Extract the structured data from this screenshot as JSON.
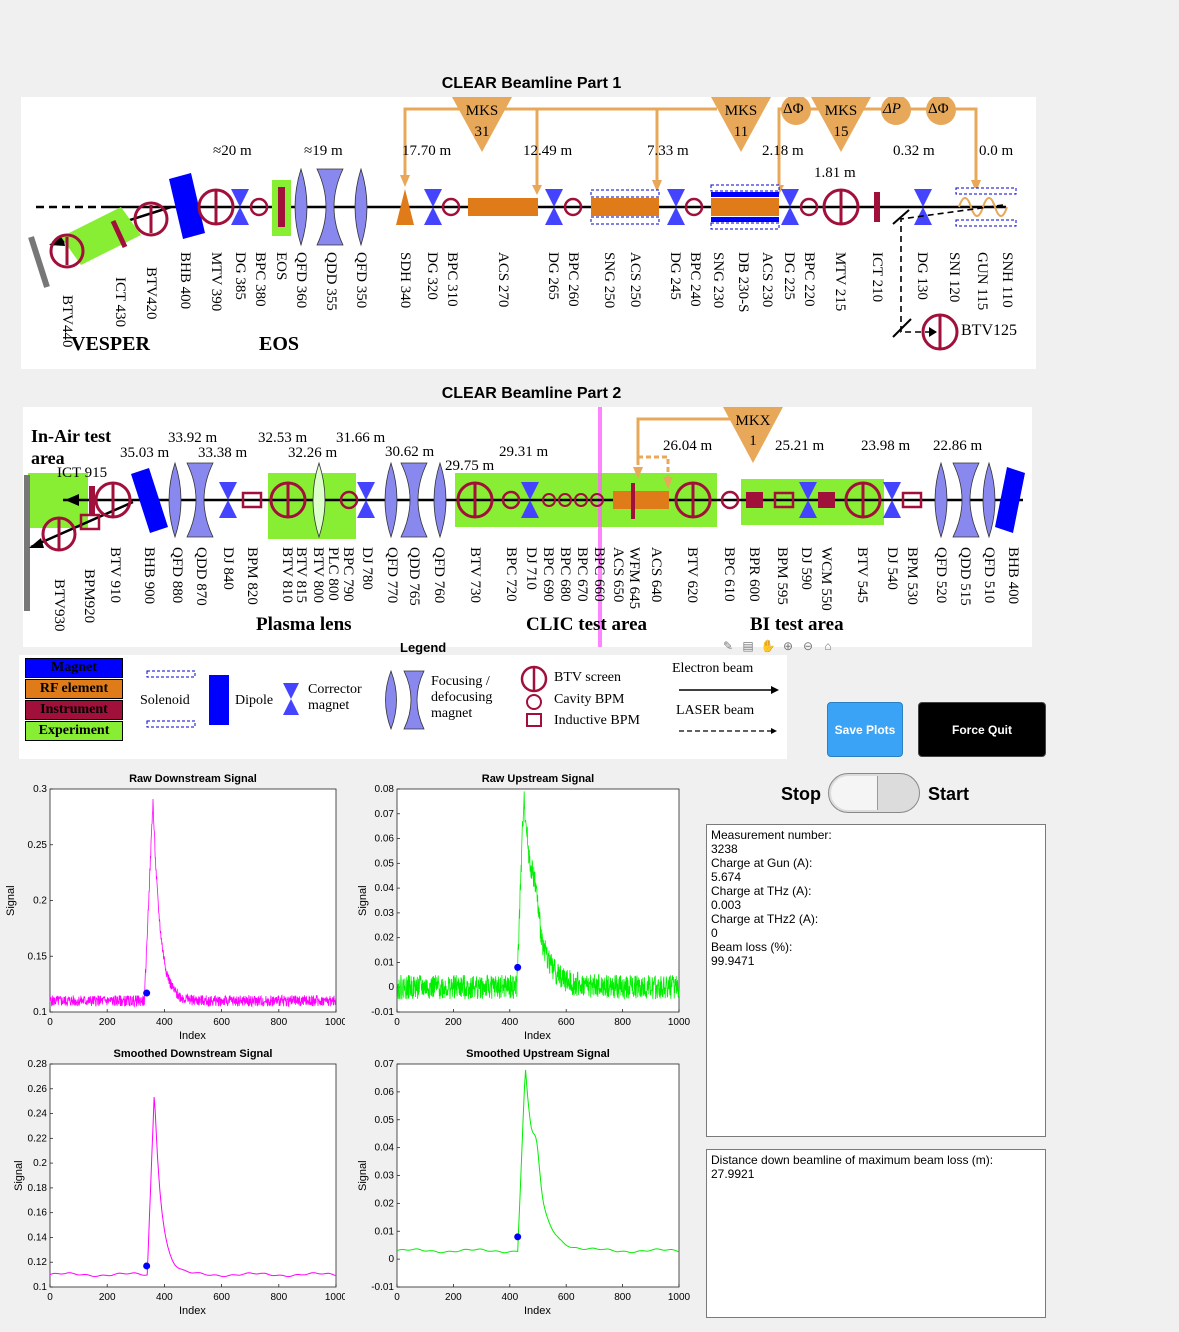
{
  "beamline1": {
    "title": "CLEAR Beamline Part 1",
    "distances": [
      "≈20 m",
      "≈19 m",
      "17.70 m",
      "12.49 m",
      "7.33 m",
      "2.18 m",
      "1.81 m",
      "0.32 m",
      "0.0 m"
    ],
    "rf_sources": [
      "MKS 31",
      "MKS 11",
      "MKS 15"
    ],
    "phase_labels": [
      "ΔΦ",
      "ΔP",
      "ΔΦ"
    ],
    "elements": [
      "BTV440",
      "ICT 430",
      "BTV420",
      "BHB 400",
      "MTV 390",
      "DG 385",
      "BPC 380",
      "EOS",
      "QFD 360",
      "QDD 355",
      "QFD 350",
      "SDH 340",
      "DG 320",
      "BPC 310",
      "ACS 270",
      "DG 265",
      "BPC 260",
      "SNG 250",
      "ACS 250",
      "DG 245",
      "BPC 240",
      "SNG 230",
      "DB 230-S",
      "ACS 230",
      "DG 225",
      "BPC 220",
      "MTV 215",
      "ICT 210",
      "DG 130",
      "SNI 120",
      "GUN 115",
      "SNH 110"
    ],
    "btv_side": "BTV125",
    "areas": [
      "VESPER",
      "EOS"
    ]
  },
  "beamline2": {
    "title": "CLEAR Beamline Part 2",
    "distances": [
      "35.03 m",
      "33.92 m",
      "33.38 m",
      "32.53 m",
      "32.26 m",
      "31.66 m",
      "30.62 m",
      "29.75 m",
      "29.31 m",
      "26.04 m",
      "25.21 m",
      "23.98 m",
      "22.86 m"
    ],
    "rf_source": "MKX 1",
    "inair_label": "In-Air test area",
    "ict_label": "ICT 915",
    "elements": [
      "BTV930",
      "BPM920",
      "BTV 910",
      "BHB 900",
      "QFD 880",
      "QDD 870",
      "DJ 840",
      "BPM 820",
      "BTV 810",
      "BTV 815",
      "BTV 800",
      "PLC 800",
      "BPC 790",
      "DJ 780",
      "QFD 770",
      "QDD 765",
      "QFD 760",
      "BTV 730",
      "BPC 720",
      "DJ 710",
      "BPC 690",
      "BPC 680",
      "BPC 670",
      "BPC 660",
      "ACS 650",
      "WFM 645",
      "ACS 640",
      "BTV 620",
      "BPC 610",
      "BPR 600",
      "BPM 595",
      "DJ 590",
      "WCM 550",
      "BTV 545",
      "DJ 540",
      "BPM 530",
      "QFD 520",
      "QDD 515",
      "QFD 510",
      "BHB 400"
    ],
    "areas": [
      "Plasma lens",
      "CLIC test area",
      "BI test area"
    ]
  },
  "legend": {
    "title": "Legend",
    "categories": [
      {
        "label": "Magnet",
        "color": "#0000ff"
      },
      {
        "label": "RF element",
        "color": "#e07b1a"
      },
      {
        "label": "Instrument",
        "color": "#a0103a"
      },
      {
        "label": "Experiment",
        "color": "#88ee33"
      }
    ],
    "solenoid": "Solenoid",
    "dipole": "Dipole",
    "corrector": "Corrector magnet",
    "focusing": "Focusing / defocusing magnet",
    "btv": "BTV screen",
    "cavity": "Cavity BPM",
    "inductive": "Inductive BPM",
    "electron": "Electron beam",
    "laser": "LASER beam"
  },
  "buttons": {
    "save": "Save Plots",
    "quit": "Force Quit"
  },
  "switch": {
    "left": "Stop",
    "right": "Start",
    "state": "Stop"
  },
  "info": {
    "lines": [
      "Measurement number:",
      "3238",
      "Charge at Gun (A):",
      "5.674",
      "Charge at THz (A):",
      "0.003",
      "Charge at THz2 (A):",
      "0",
      "Beam loss (%):",
      "99.9471"
    ]
  },
  "distance_box": {
    "label": "Distance down beamline of maximum beam loss (m):",
    "value": "27.9921"
  },
  "chart_data": [
    {
      "type": "line",
      "title": "Raw Downstream Signal",
      "xlabel": "Index",
      "ylabel": "Signal",
      "xlim": [
        0,
        1000
      ],
      "ylim": [
        0.1,
        0.3
      ],
      "xticks": [
        0,
        200,
        400,
        600,
        800,
        1000
      ],
      "yticks": [
        0.1,
        0.15,
        0.2,
        0.25,
        0.3
      ],
      "color": "#ff00ff",
      "noisy": true,
      "baseline": 0.11,
      "peak_x": 360,
      "peak_y": 0.29,
      "rise_start": 330,
      "marker": {
        "x": 338,
        "y": 0.117,
        "color": "#0000ff"
      }
    },
    {
      "type": "line",
      "title": "Raw Upstream Signal",
      "xlabel": "Index",
      "ylabel": "Signal",
      "xlim": [
        0,
        1000
      ],
      "ylim": [
        -0.01,
        0.08
      ],
      "xticks": [
        0,
        200,
        400,
        600,
        800,
        1000
      ],
      "yticks": [
        -0.01,
        0,
        0.01,
        0.02,
        0.03,
        0.04,
        0.05,
        0.06,
        0.07,
        0.08
      ],
      "color": "#00ee00",
      "noisy": true,
      "baseline": 0.0,
      "peak_x": 450,
      "peak_y": 0.078,
      "rise_start": 425,
      "marker": {
        "x": 428,
        "y": 0.008,
        "color": "#0000ff"
      }
    },
    {
      "type": "line",
      "title": "Smoothed Downstream Signal",
      "xlabel": "Index",
      "ylabel": "Signal",
      "xlim": [
        0,
        1000
      ],
      "ylim": [
        0.1,
        0.28
      ],
      "xticks": [
        0,
        200,
        400,
        600,
        800,
        1000
      ],
      "yticks": [
        0.1,
        0.12,
        0.14,
        0.16,
        0.18,
        0.2,
        0.22,
        0.24,
        0.26,
        0.28
      ],
      "color": "#ff00ff",
      "noisy": false,
      "baseline": 0.11,
      "peak_x": 365,
      "peak_y": 0.26,
      "rise_start": 340,
      "marker": {
        "x": 338,
        "y": 0.117,
        "color": "#0000ff"
      }
    },
    {
      "type": "line",
      "title": "Smoothed Upstream Signal",
      "xlabel": "Index",
      "ylabel": "Signal",
      "xlim": [
        0,
        1000
      ],
      "ylim": [
        -0.01,
        0.07
      ],
      "xticks": [
        0,
        200,
        400,
        600,
        800,
        1000
      ],
      "yticks": [
        -0.01,
        0,
        0.01,
        0.02,
        0.03,
        0.04,
        0.05,
        0.06,
        0.07
      ],
      "color": "#00ee00",
      "noisy": false,
      "baseline": 0.003,
      "peak_x": 455,
      "peak_y": 0.069,
      "rise_start": 428,
      "marker": {
        "x": 428,
        "y": 0.008,
        "color": "#0000ff"
      }
    }
  ]
}
